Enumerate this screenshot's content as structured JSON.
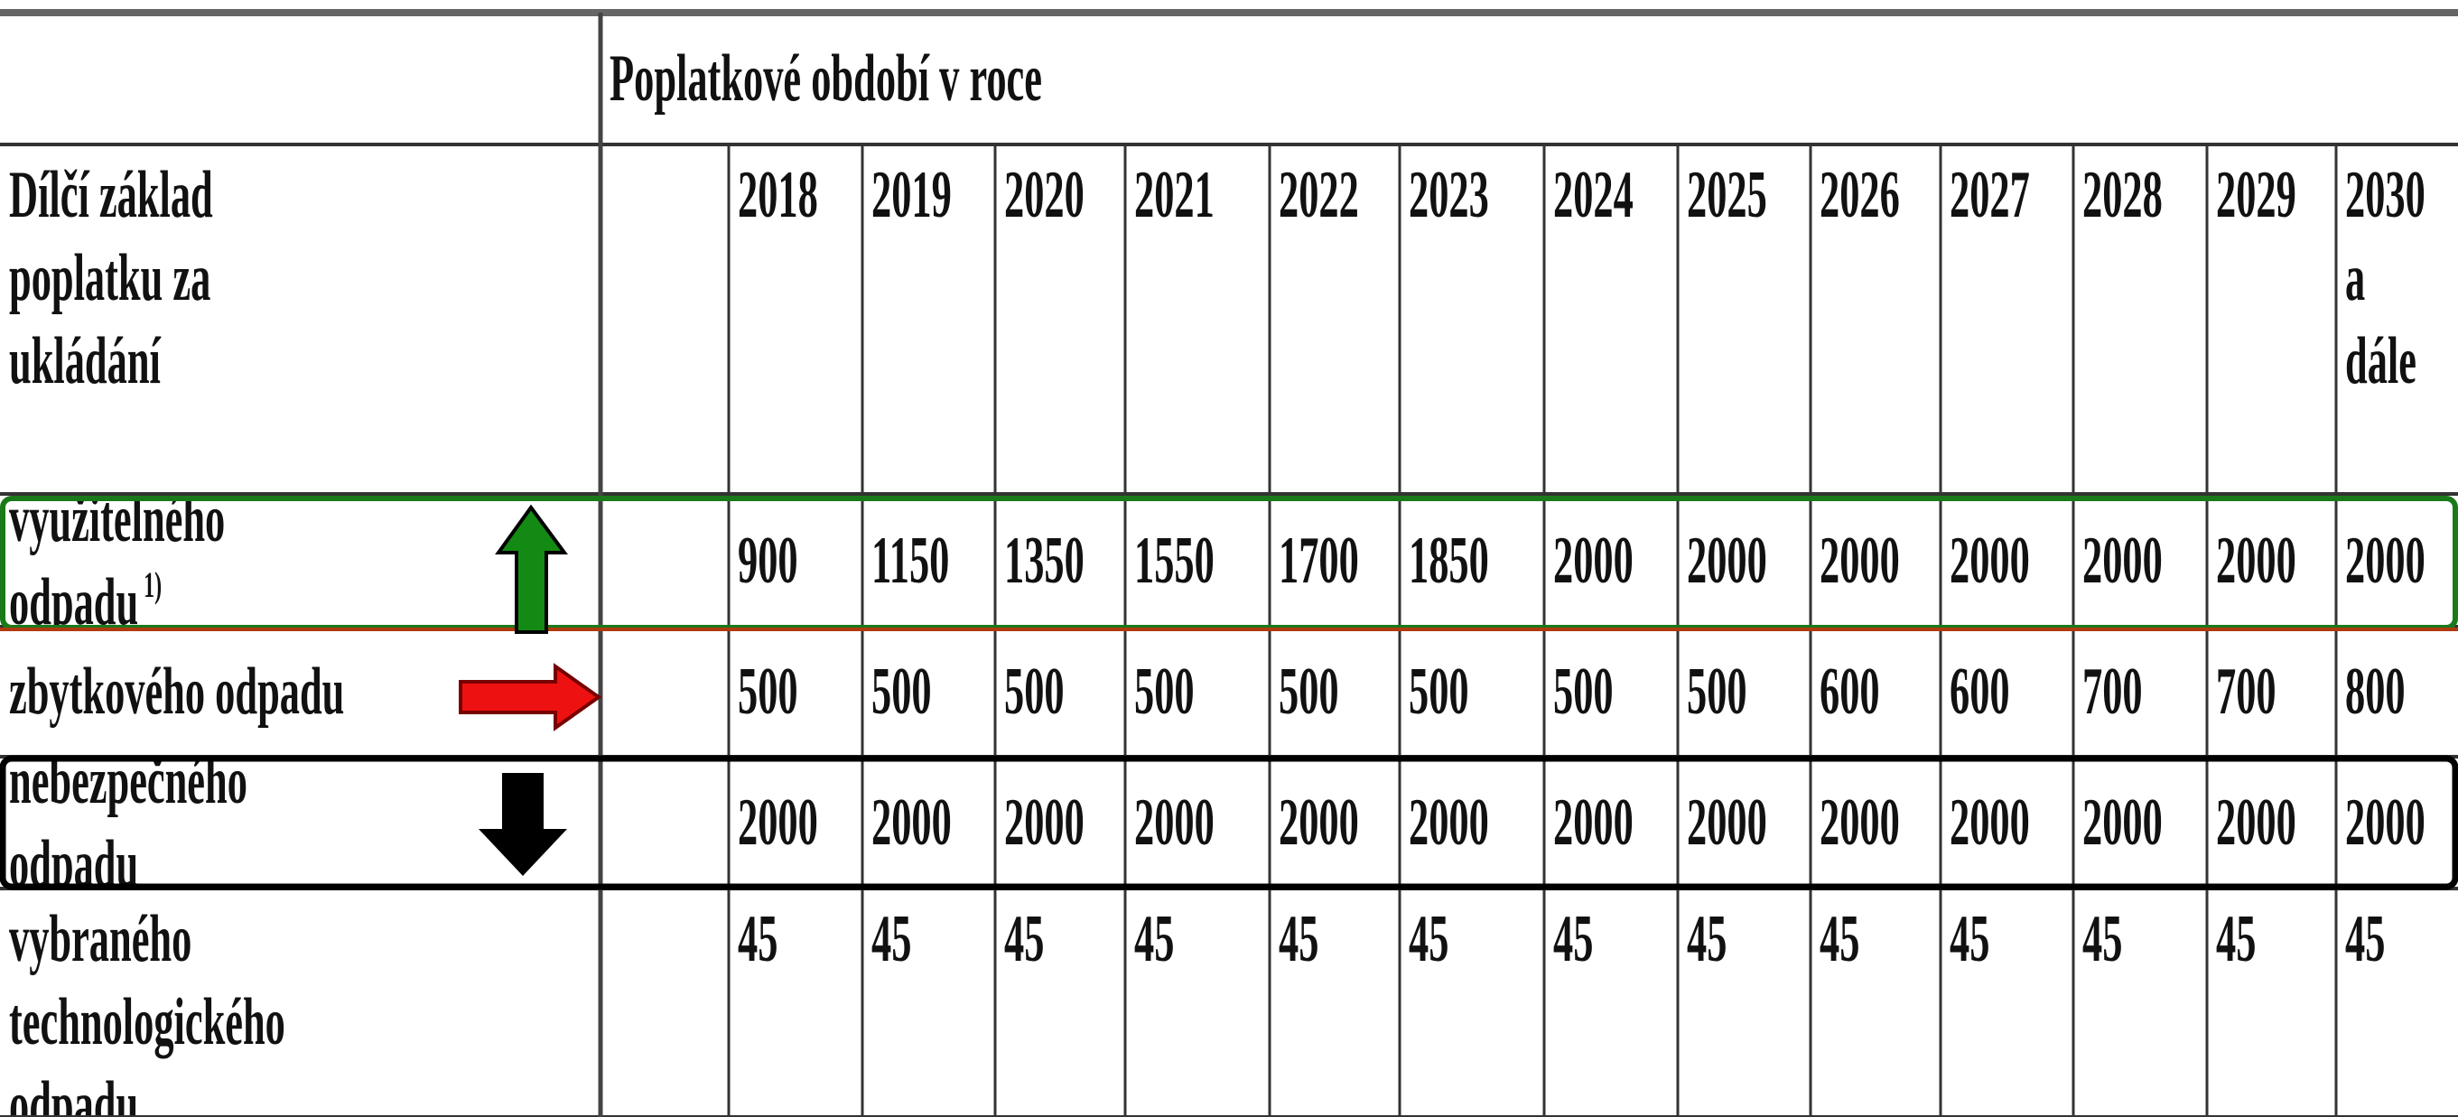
{
  "table": {
    "header": "Poplatkové období v roce",
    "row_label_header": "Dílčí základ poplatku za ukládání",
    "columns": [
      "2018",
      "2019",
      "2020",
      "2021",
      "2022",
      "2023",
      "2024",
      "2025",
      "2026",
      "2027",
      "2028",
      "2029",
      "2030 a dále"
    ],
    "rows": [
      {
        "label": "využitelného odpadu",
        "note": "1)",
        "values": [
          900,
          1150,
          1350,
          1550,
          1700,
          1850,
          2000,
          2000,
          2000,
          2000,
          2000,
          2000,
          2000
        ]
      },
      {
        "label": "zbytkového odpadu",
        "values": [
          500,
          500,
          500,
          500,
          500,
          500,
          500,
          500,
          600,
          600,
          700,
          700,
          800
        ]
      },
      {
        "label": "nebezpečného odpadu",
        "values": [
          2000,
          2000,
          2000,
          2000,
          2000,
          2000,
          2000,
          2000,
          2000,
          2000,
          2000,
          2000,
          2000
        ]
      },
      {
        "label": "vybraného technologického odpadu",
        "values": [
          45,
          45,
          45,
          45,
          45,
          45,
          45,
          45,
          45,
          45,
          45,
          45,
          45
        ]
      }
    ]
  }
}
